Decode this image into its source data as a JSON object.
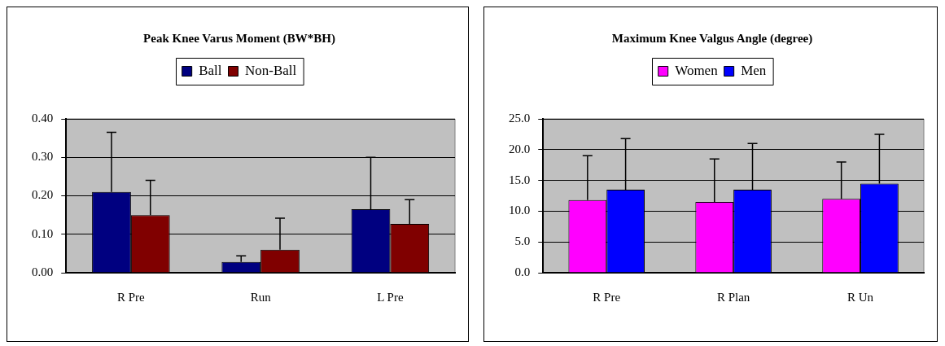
{
  "chart_data": [
    {
      "type": "bar",
      "title": "Peak Knee Varus Moment (BW*BH)",
      "categories": [
        "R Pre",
        "Run",
        "L Pre"
      ],
      "series": [
        {
          "name": "Ball",
          "color": "#000080",
          "values": [
            0.21,
            0.028,
            0.165
          ],
          "errors": [
            [
              0.21,
              0.365
            ],
            [
              0.028,
              0.044
            ],
            [
              0.165,
              0.3
            ]
          ]
        },
        {
          "name": "Non-Ball",
          "color": "#800000",
          "values": [
            0.15,
            0.06,
            0.127
          ],
          "errors": [
            [
              0.15,
              0.24
            ],
            [
              0.06,
              0.142
            ],
            [
              0.127,
              0.19
            ]
          ]
        }
      ],
      "ylim": [
        0,
        0.4
      ],
      "yticks": [
        {
          "value": 0,
          "label": "0.00"
        },
        {
          "value": 0.1,
          "label": "0.10"
        },
        {
          "value": 0.2,
          "label": "0.20"
        },
        {
          "value": 0.3,
          "label": "0.30"
        },
        {
          "value": 0.4,
          "label": "0.40"
        }
      ],
      "grid": "y",
      "legend": "top"
    },
    {
      "type": "bar",
      "title": "Maximum Knee Valgus Angle (degree)",
      "categories": [
        "R Pre",
        "R Plan",
        "R Un"
      ],
      "series": [
        {
          "name": "Women",
          "color": "#ff00ff",
          "values": [
            11.8,
            11.5,
            12.0
          ],
          "errors": [
            [
              11.8,
              19.0
            ],
            [
              11.5,
              18.5
            ],
            [
              12.0,
              18.0
            ]
          ]
        },
        {
          "name": "Men",
          "color": "#0000ff",
          "values": [
            13.5,
            13.5,
            14.5
          ],
          "errors": [
            [
              13.5,
              21.8
            ],
            [
              13.5,
              21.0
            ],
            [
              14.5,
              22.5
            ]
          ]
        }
      ],
      "ylim": [
        0,
        25
      ],
      "yticks": [
        {
          "value": 0,
          "label": "0.0"
        },
        {
          "value": 5,
          "label": "5.0"
        },
        {
          "value": 10,
          "label": "10.0"
        },
        {
          "value": 15,
          "label": "15.0"
        },
        {
          "value": 20,
          "label": "20.0"
        },
        {
          "value": 25,
          "label": "25.0"
        }
      ],
      "grid": "y",
      "legend": "top"
    }
  ]
}
